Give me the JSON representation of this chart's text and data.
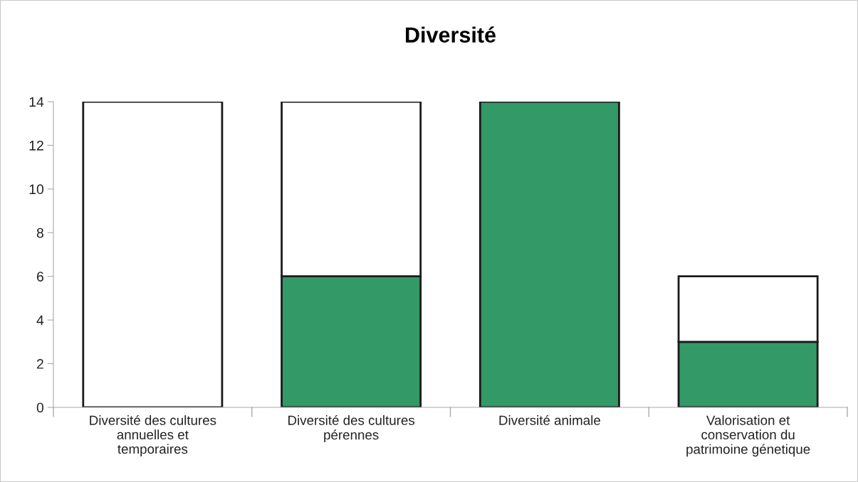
{
  "chart_data": {
    "type": "bar",
    "title": "Diversité",
    "stacked": true,
    "categories": [
      "Diversité des cultures\nannuelles et\ntemporaires",
      "Diversité des cultures\npérennes",
      "Diversité animale",
      "Valorisation et\nconservation du\npatrimoine génetique"
    ],
    "series": [
      {
        "color": "#339966",
        "values": [
          0,
          6,
          14,
          3
        ]
      },
      {
        "color": "#ffffff",
        "values": [
          14,
          8,
          0,
          3
        ]
      }
    ],
    "ylim": [
      0,
      14
    ],
    "yticks": [
      0,
      2,
      4,
      6,
      8,
      10,
      12,
      14
    ],
    "grid": false,
    "legend": false
  }
}
